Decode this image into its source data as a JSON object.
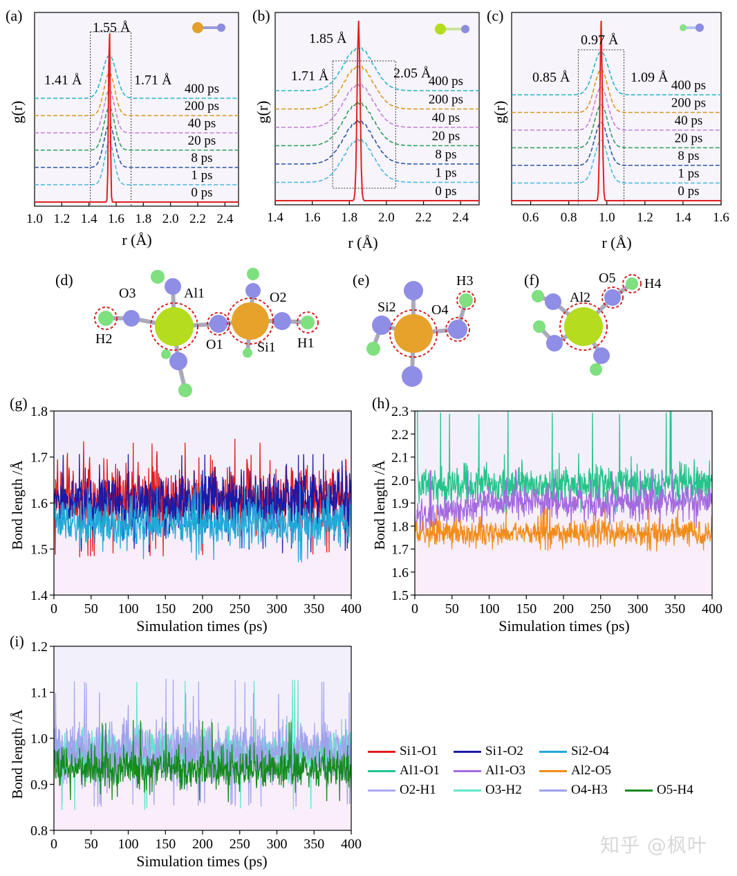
{
  "panels": {
    "a": {
      "letter": "(a)",
      "ylabel": "g(r)",
      "xlabel": "r (Å)",
      "annotations": {
        "peak": "1.55 Å",
        "left": "1.41 Å",
        "right": "1.71 Å"
      }
    },
    "b": {
      "letter": "(b)",
      "ylabel": "g(r)",
      "xlabel": "r (Å)",
      "annotations": {
        "peak": "1.85 Å",
        "left": "1.71 Å",
        "right": "2.05 Å"
      }
    },
    "c": {
      "letter": "(c)",
      "ylabel": "g(r)",
      "xlabel": "r (Å)",
      "annotations": {
        "peak": "0.97 Å",
        "left": "0.85 Å",
        "right": "1.09 Å"
      }
    },
    "d": {
      "letter": "(d)",
      "atoms": [
        "O3",
        "Al1",
        "O2",
        "H2",
        "O1",
        "Si1",
        "H1"
      ]
    },
    "e": {
      "letter": "(e)",
      "atoms": [
        "H3",
        "Si2",
        "O4"
      ]
    },
    "f": {
      "letter": "(f)",
      "atoms": [
        "O5",
        "H4",
        "Al2"
      ]
    },
    "g": {
      "letter": "(g)",
      "ylabel": "Bond length /Å",
      "xlabel": "Simulation times (ps)"
    },
    "h": {
      "letter": "(h)",
      "ylabel": "Bond length /Å",
      "xlabel": "Simulation times (ps)"
    },
    "i": {
      "letter": "(i)",
      "ylabel": "Bond length /Å",
      "xlabel": "Simulation times (ps)"
    }
  },
  "time_labels": [
    "400 ps",
    "200 ps",
    "40 ps",
    "20 ps",
    "8 ps",
    "1 ps",
    "0 ps"
  ],
  "time_colors": [
    "#27b5c6",
    "#d7981e",
    "#c57fd6",
    "#2e9e57",
    "#2a56a4",
    "#48b8e0",
    "#e02020"
  ],
  "legend": [
    [
      {
        "label": "Si1-O1",
        "color": "#e31a1c"
      },
      {
        "label": "Si1-O2",
        "color": "#1a1aa8"
      },
      {
        "label": "Si2-O4",
        "color": "#1fa8d8"
      }
    ],
    [
      {
        "label": "Al1-O1",
        "color": "#25c48a"
      },
      {
        "label": "Al1-O3",
        "color": "#a569e0"
      },
      {
        "label": "Al2-O5",
        "color": "#f28c18"
      }
    ],
    [
      {
        "label": "O2-H1",
        "color": "#a9a9f0"
      },
      {
        "label": "O3-H2",
        "color": "#5ee8c8"
      },
      {
        "label": "O4-H3",
        "color": "#a0a0ea"
      },
      {
        "label": "O5-H4",
        "color": "#158a1e"
      }
    ]
  ],
  "watermark": "知乎 @枫叶",
  "chart_data": [
    {
      "id": "a",
      "type": "line",
      "xlabel": "r (Å)",
      "ylabel": "g(r)",
      "xlim": [
        1.0,
        2.5
      ],
      "xticks": [
        1.0,
        1.2,
        1.4,
        1.6,
        1.8,
        2.0,
        2.2,
        2.4
      ],
      "series": [
        {
          "name": "400 ps",
          "peak": 1.55,
          "width": 0.05
        },
        {
          "name": "200 ps",
          "peak": 1.55,
          "width": 0.04
        },
        {
          "name": "40 ps",
          "peak": 1.55,
          "width": 0.04
        },
        {
          "name": "20 ps",
          "peak": 1.55,
          "width": 0.04
        },
        {
          "name": "8 ps",
          "peak": 1.55,
          "width": 0.04
        },
        {
          "name": "1 ps",
          "peak": 1.55,
          "width": 0.035
        },
        {
          "name": "0 ps",
          "peak": 1.55,
          "width": 0.006
        }
      ],
      "window": [
        1.41,
        1.71
      ]
    },
    {
      "id": "b",
      "type": "line",
      "xlabel": "r (Å)",
      "ylabel": "g(r)",
      "xlim": [
        1.4,
        2.5
      ],
      "xticks": [
        1.4,
        1.6,
        1.8,
        2.0,
        2.2,
        2.4
      ],
      "series": [
        {
          "name": "400 ps",
          "peak": 1.85,
          "width": 0.08
        },
        {
          "name": "200 ps",
          "peak": 1.85,
          "width": 0.08
        },
        {
          "name": "40 ps",
          "peak": 1.85,
          "width": 0.08
        },
        {
          "name": "20 ps",
          "peak": 1.85,
          "width": 0.08
        },
        {
          "name": "8 ps",
          "peak": 1.85,
          "width": 0.08
        },
        {
          "name": "1 ps",
          "peak": 1.85,
          "width": 0.08
        },
        {
          "name": "0 ps",
          "peak": 1.85,
          "width": 0.008
        }
      ],
      "window": [
        1.71,
        2.05
      ]
    },
    {
      "id": "c",
      "type": "line",
      "xlabel": "r (Å)",
      "ylabel": "g(r)",
      "xlim": [
        0.5,
        1.6
      ],
      "xticks": [
        0.6,
        0.8,
        1.0,
        1.2,
        1.4,
        1.6
      ],
      "series": [
        {
          "name": "400 ps",
          "peak": 0.97,
          "width": 0.04
        },
        {
          "name": "200 ps",
          "peak": 0.97,
          "width": 0.035
        },
        {
          "name": "40 ps",
          "peak": 0.97,
          "width": 0.035
        },
        {
          "name": "20 ps",
          "peak": 0.97,
          "width": 0.035
        },
        {
          "name": "8 ps",
          "peak": 0.97,
          "width": 0.035
        },
        {
          "name": "1 ps",
          "peak": 0.97,
          "width": 0.035
        },
        {
          "name": "0 ps",
          "peak": 0.97,
          "width": 0.006
        }
      ],
      "window": [
        0.85,
        1.09
      ]
    },
    {
      "id": "g",
      "type": "line",
      "xlabel": "Simulation times (ps)",
      "ylabel": "Bond length /Å",
      "xlim": [
        0,
        400
      ],
      "ylim": [
        1.4,
        1.8
      ],
      "xticks": [
        0,
        50,
        100,
        150,
        200,
        250,
        300,
        350,
        400
      ],
      "yticks": [
        1.4,
        1.5,
        1.6,
        1.7,
        1.8
      ],
      "series": [
        {
          "name": "Si1-O1",
          "mean": 1.61,
          "amp": 0.045,
          "max": 1.74,
          "min": 1.48
        },
        {
          "name": "Si1-O2",
          "mean": 1.6,
          "amp": 0.04,
          "max": 1.71,
          "min": 1.49
        },
        {
          "name": "Si2-O4",
          "mean": 1.555,
          "amp": 0.03,
          "max": 1.64,
          "min": 1.47
        }
      ]
    },
    {
      "id": "h",
      "type": "line",
      "xlabel": "Simulation times (ps)",
      "ylabel": "Bond length /Å",
      "xlim": [
        0,
        400
      ],
      "ylim": [
        1.5,
        2.3
      ],
      "xticks": [
        0,
        50,
        100,
        150,
        200,
        250,
        300,
        350,
        400
      ],
      "yticks": [
        1.5,
        1.6,
        1.7,
        1.8,
        1.9,
        2.0,
        2.1,
        2.2,
        2.3
      ],
      "series": [
        {
          "name": "Al1-O1",
          "mean": 1.98,
          "amp": 0.05,
          "max": 2.3,
          "min": 1.85
        },
        {
          "name": "Al1-O3",
          "mean_early": 1.84,
          "mean": 1.9,
          "amp": 0.04,
          "max": 2.05,
          "min": 1.78
        },
        {
          "name": "Al2-O5",
          "mean": 1.77,
          "amp": 0.035,
          "max": 1.88,
          "min": 1.69
        }
      ]
    },
    {
      "id": "i",
      "type": "line",
      "xlabel": "Simulation times (ps)",
      "ylabel": "Bond length /Å",
      "xlim": [
        0,
        400
      ],
      "ylim": [
        0.8,
        1.2
      ],
      "xticks": [
        0,
        50,
        100,
        150,
        200,
        250,
        300,
        350,
        400
      ],
      "yticks": [
        0.8,
        0.9,
        1.0,
        1.1,
        1.2
      ],
      "series": [
        {
          "name": "O2-H1",
          "mean": 0.97,
          "amp": 0.035,
          "max": 1.13,
          "min": 0.85
        },
        {
          "name": "O3-H2",
          "mean": 0.965,
          "amp": 0.03,
          "max": 1.13,
          "min": 0.84
        },
        {
          "name": "O4-H3",
          "mean": 0.97,
          "amp": 0.035,
          "max": 1.1,
          "min": 0.85
        },
        {
          "name": "O5-H4",
          "mean": 0.935,
          "amp": 0.025,
          "max": 1.04,
          "min": 0.86
        }
      ]
    }
  ]
}
